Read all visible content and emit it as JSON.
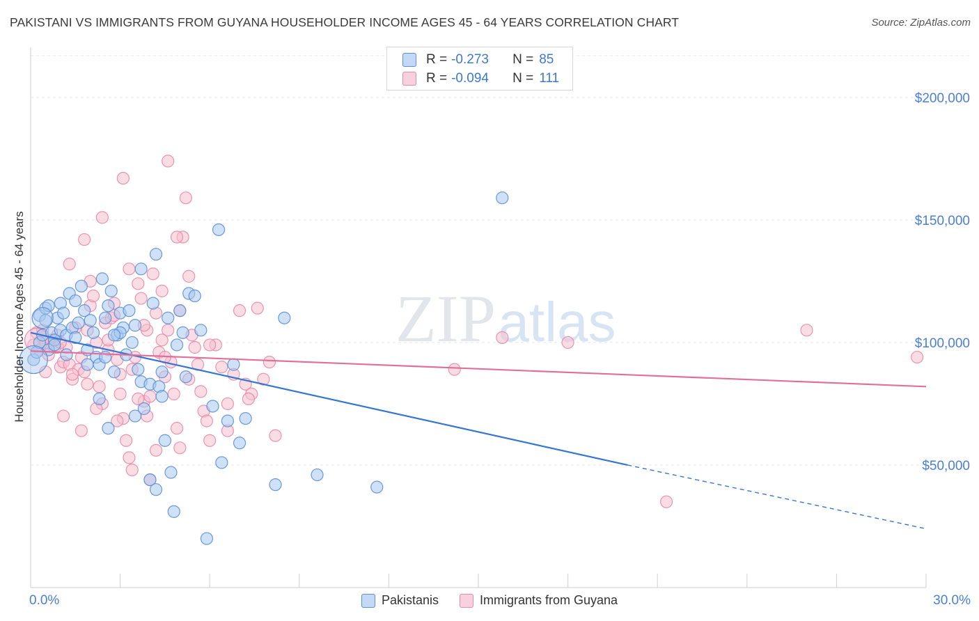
{
  "title": "PAKISTANI VS IMMIGRANTS FROM GUYANA HOUSEHOLDER INCOME AGES 45 - 64 YEARS CORRELATION CHART",
  "source": "Source: ZipAtlas.com",
  "watermark": {
    "zip": "ZIP",
    "atlas": "atlas"
  },
  "colors": {
    "blue_fill": "#a8c8f0",
    "blue_stroke": "#5b8fd6",
    "blue_line": "#3575d3",
    "pink_fill": "#f6bfd0",
    "pink_stroke": "#e88aa8",
    "pink_line": "#e0709a",
    "axis_label": "#4a7fd4",
    "grid": "#e5e5e5"
  },
  "legend": {
    "rows": [
      {
        "r_label": "R =",
        "r_value": "-0.273",
        "n_label": "N =",
        "n_value": "85"
      },
      {
        "r_label": "R =",
        "r_value": "-0.094",
        "n_label": "N =",
        "n_value": "111"
      }
    ]
  },
  "bottom_legend": [
    "Pakistanis",
    "Immigrants from Guyana"
  ],
  "chart_data": {
    "type": "scatter",
    "title": "PAKISTANI VS IMMIGRANTS FROM GUYANA HOUSEHOLDER INCOME AGES 45 - 64 YEARS CORRELATION CHART",
    "xlabel": "",
    "ylabel": "Householder Income Ages 45 - 64 years",
    "xlim": [
      0,
      30
    ],
    "ylim": [
      0,
      217000
    ],
    "x_tick_labels": [
      "0.0%",
      "30.0%"
    ],
    "y_ticks": [
      50000,
      100000,
      150000,
      200000
    ],
    "y_tick_labels": [
      "$50,000",
      "$100,000",
      "$150,000",
      "$200,000"
    ],
    "grid": true,
    "legend_position": "top-center",
    "series": [
      {
        "name": "Pakistanis",
        "r": -0.273,
        "n": 85,
        "trend": {
          "x0": 0,
          "y0": 104000,
          "x1": 20,
          "y1": 50000,
          "dashed_to_x": 30,
          "dashed_to_y": 24000
        },
        "points": [
          [
            0.1,
            93000
          ],
          [
            0.2,
            96000
          ],
          [
            0.3,
            100000
          ],
          [
            0.3,
            111000
          ],
          [
            0.4,
            103000
          ],
          [
            0.5,
            109000
          ],
          [
            0.5,
            114000
          ],
          [
            0.6,
            115000
          ],
          [
            0.7,
            104000
          ],
          [
            0.8,
            101000
          ],
          [
            0.9,
            110000
          ],
          [
            1.0,
            105000
          ],
          [
            1.0,
            116000
          ],
          [
            1.1,
            112000
          ],
          [
            1.2,
            103000
          ],
          [
            1.3,
            120000
          ],
          [
            1.4,
            106000
          ],
          [
            1.5,
            117000
          ],
          [
            1.6,
            108000
          ],
          [
            1.7,
            123000
          ],
          [
            1.8,
            113000
          ],
          [
            1.9,
            97000
          ],
          [
            2.0,
            109000
          ],
          [
            2.1,
            104000
          ],
          [
            2.2,
            94000
          ],
          [
            2.3,
            91000
          ],
          [
            2.4,
            126000
          ],
          [
            2.5,
            110000
          ],
          [
            2.6,
            115000
          ],
          [
            2.7,
            121000
          ],
          [
            2.8,
            88000
          ],
          [
            2.9,
            103000
          ],
          [
            3.0,
            112000
          ],
          [
            3.1,
            106000
          ],
          [
            3.2,
            95000
          ],
          [
            3.3,
            113000
          ],
          [
            3.4,
            100000
          ],
          [
            3.5,
            107000
          ],
          [
            3.6,
            89000
          ],
          [
            3.7,
            84000
          ],
          [
            3.8,
            73000
          ],
          [
            4.0,
            83000
          ],
          [
            4.1,
            116000
          ],
          [
            4.2,
            136000
          ],
          [
            4.3,
            82000
          ],
          [
            4.4,
            78000
          ],
          [
            4.5,
            60000
          ],
          [
            4.6,
            110000
          ],
          [
            4.7,
            47000
          ],
          [
            4.8,
            31000
          ],
          [
            4.9,
            99000
          ],
          [
            5.0,
            113000
          ],
          [
            5.1,
            104000
          ],
          [
            5.2,
            86000
          ],
          [
            5.3,
            120000
          ],
          [
            5.5,
            119000
          ],
          [
            5.7,
            105000
          ],
          [
            5.9,
            20000
          ],
          [
            6.1,
            74000
          ],
          [
            6.3,
            146000
          ],
          [
            6.4,
            51000
          ],
          [
            6.6,
            68000
          ],
          [
            6.8,
            91000
          ],
          [
            7.0,
            59000
          ],
          [
            7.2,
            69000
          ],
          [
            2.3,
            77000
          ],
          [
            2.5,
            94000
          ],
          [
            2.6,
            65000
          ],
          [
            3.0,
            104000
          ],
          [
            3.5,
            70000
          ],
          [
            4.0,
            44000
          ],
          [
            4.2,
            40000
          ],
          [
            8.2,
            42000
          ],
          [
            8.5,
            110000
          ],
          [
            9.6,
            46000
          ],
          [
            11.6,
            41000
          ],
          [
            15.8,
            159000
          ],
          [
            0.6,
            97000
          ],
          [
            1.9,
            91000
          ],
          [
            1.2,
            95000
          ],
          [
            3.7,
            130000
          ],
          [
            2.8,
            103000
          ],
          [
            4.4,
            88000
          ],
          [
            0.8,
            99000
          ],
          [
            1.5,
            102000
          ]
        ]
      },
      {
        "name": "Immigrants from Guyana",
        "r": -0.094,
        "n": 111,
        "trend": {
          "x0": 0,
          "y0": 96500,
          "x1": 30,
          "y1": 82000
        },
        "points": [
          [
            0.1,
            99000
          ],
          [
            0.2,
            104000
          ],
          [
            0.3,
            97000
          ],
          [
            0.4,
            102000
          ],
          [
            0.5,
            100000
          ],
          [
            0.6,
            95000
          ],
          [
            0.7,
            101000
          ],
          [
            0.8,
            98000
          ],
          [
            0.9,
            103000
          ],
          [
            1.0,
            90000
          ],
          [
            1.1,
            92000
          ],
          [
            1.2,
            98000
          ],
          [
            1.3,
            91000
          ],
          [
            1.4,
            85000
          ],
          [
            1.5,
            106000
          ],
          [
            1.6,
            89000
          ],
          [
            1.7,
            94000
          ],
          [
            1.8,
            88000
          ],
          [
            1.9,
            83000
          ],
          [
            2.0,
            115000
          ],
          [
            2.1,
            119000
          ],
          [
            2.2,
            100000
          ],
          [
            2.3,
            82000
          ],
          [
            2.4,
            75000
          ],
          [
            2.5,
            108000
          ],
          [
            2.6,
            97000
          ],
          [
            2.7,
            110000
          ],
          [
            2.8,
            116000
          ],
          [
            2.9,
            93000
          ],
          [
            3.0,
            87000
          ],
          [
            3.1,
            69000
          ],
          [
            3.2,
            60000
          ],
          [
            3.3,
            53000
          ],
          [
            3.4,
            48000
          ],
          [
            3.5,
            94000
          ],
          [
            3.6,
            124000
          ],
          [
            3.7,
            118000
          ],
          [
            3.8,
            76000
          ],
          [
            3.9,
            70000
          ],
          [
            4.0,
            78000
          ],
          [
            4.1,
            128000
          ],
          [
            4.2,
            112000
          ],
          [
            4.3,
            96000
          ],
          [
            4.4,
            121000
          ],
          [
            4.5,
            86000
          ],
          [
            4.6,
            105000
          ],
          [
            4.7,
            92000
          ],
          [
            4.8,
            79000
          ],
          [
            4.9,
            65000
          ],
          [
            5.0,
            57000
          ],
          [
            5.1,
            143000
          ],
          [
            5.2,
            159000
          ],
          [
            5.3,
            127000
          ],
          [
            5.4,
            103000
          ],
          [
            5.5,
            98000
          ],
          [
            5.6,
            91000
          ],
          [
            5.7,
            80000
          ],
          [
            5.8,
            72000
          ],
          [
            5.9,
            68000
          ],
          [
            6.0,
            60000
          ],
          [
            6.2,
            99000
          ],
          [
            6.4,
            90000
          ],
          [
            6.6,
            75000
          ],
          [
            6.8,
            87000
          ],
          [
            7.0,
            113000
          ],
          [
            7.2,
            83000
          ],
          [
            7.4,
            79000
          ],
          [
            7.6,
            114000
          ],
          [
            7.8,
            85000
          ],
          [
            8.0,
            92000
          ],
          [
            8.2,
            62000
          ],
          [
            1.8,
            142000
          ],
          [
            2.4,
            151000
          ],
          [
            3.1,
            167000
          ],
          [
            4.6,
            174000
          ],
          [
            2.0,
            125000
          ],
          [
            1.3,
            132000
          ],
          [
            3.3,
            130000
          ],
          [
            4.9,
            143000
          ],
          [
            4.4,
            101000
          ],
          [
            1.1,
            70000
          ],
          [
            1.7,
            64000
          ],
          [
            2.2,
            73000
          ],
          [
            2.9,
            68000
          ],
          [
            3.6,
            77000
          ],
          [
            4.2,
            56000
          ],
          [
            5.3,
            85000
          ],
          [
            6.0,
            99000
          ],
          [
            6.6,
            64000
          ],
          [
            7.3,
            77000
          ],
          [
            0.5,
            88000
          ],
          [
            0.9,
            98000
          ],
          [
            1.4,
            87000
          ],
          [
            1.9,
            105000
          ],
          [
            2.6,
            101000
          ],
          [
            3.0,
            79000
          ],
          [
            3.4,
            89000
          ],
          [
            3.9,
            105000
          ],
          [
            4.5,
            94000
          ],
          [
            4.0,
            44000
          ],
          [
            14.2,
            89000
          ],
          [
            15.8,
            102000
          ],
          [
            18.0,
            100000
          ],
          [
            21.3,
            35000
          ],
          [
            26.0,
            105000
          ],
          [
            29.7,
            94000
          ],
          [
            0.4,
            105000
          ],
          [
            1.0,
            100000
          ],
          [
            2.8,
            111000
          ],
          [
            3.8,
            107000
          ],
          [
            5.0,
            113000
          ]
        ]
      }
    ]
  }
}
